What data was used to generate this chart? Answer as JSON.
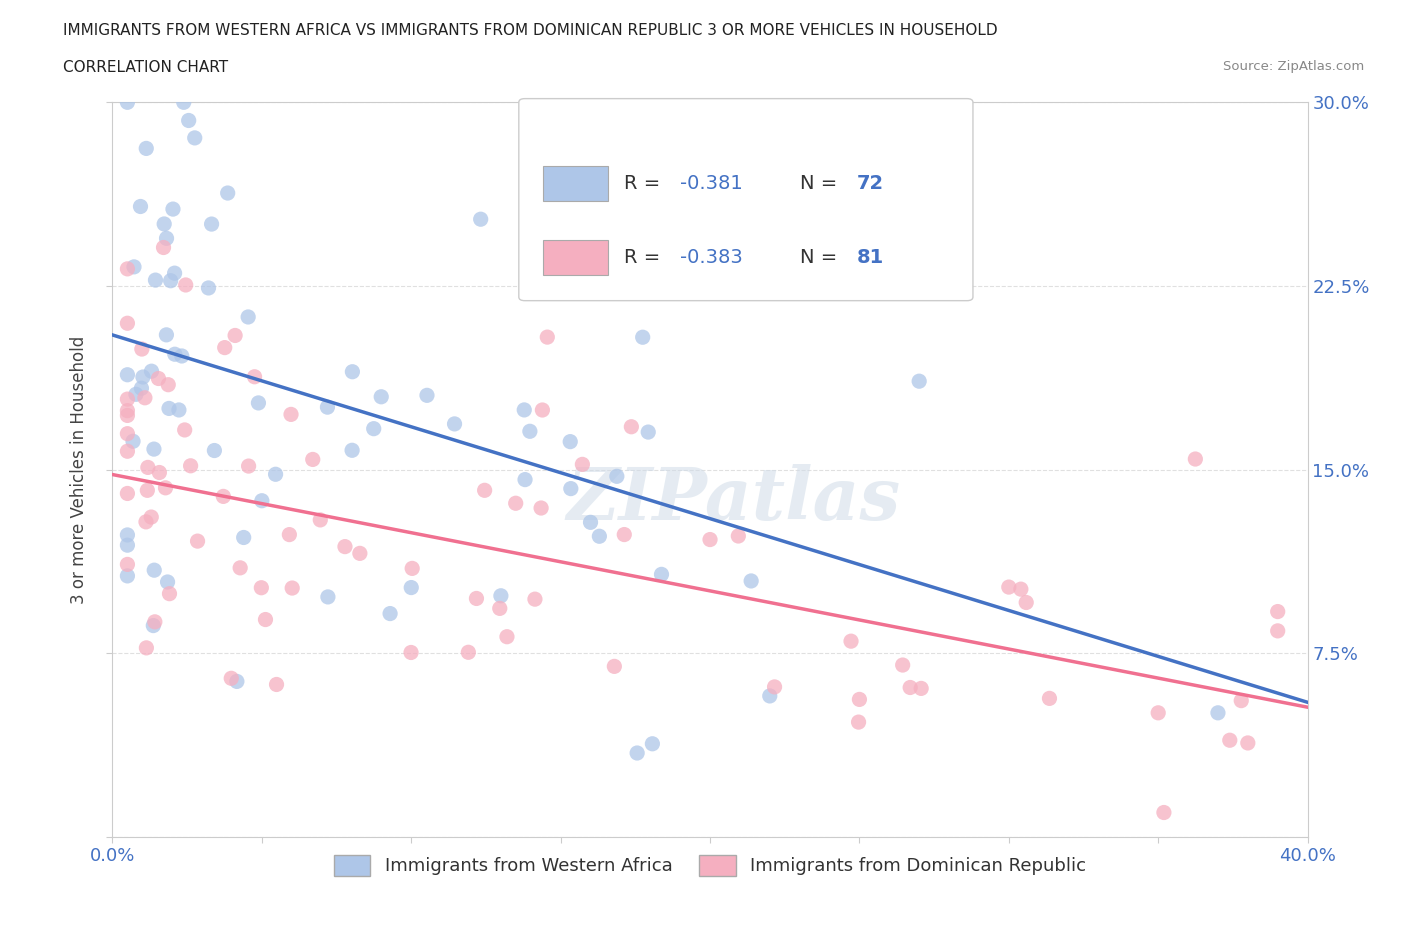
{
  "title_line1": "IMMIGRANTS FROM WESTERN AFRICA VS IMMIGRANTS FROM DOMINICAN REPUBLIC 3 OR MORE VEHICLES IN HOUSEHOLD",
  "title_line2": "CORRELATION CHART",
  "source_text": "Source: ZipAtlas.com",
  "ylabel": "3 or more Vehicles in Household",
  "xlim": [
    0.0,
    0.4
  ],
  "ylim": [
    0.0,
    0.3
  ],
  "xtick_pos": [
    0.0,
    0.05,
    0.1,
    0.15,
    0.2,
    0.25,
    0.3,
    0.35,
    0.4
  ],
  "ytick_pos": [
    0.0,
    0.075,
    0.15,
    0.225,
    0.3
  ],
  "xtick_labels": [
    "0.0%",
    "",
    "",
    "",
    "",
    "",
    "",
    "",
    "40.0%"
  ],
  "ytick_labels": [
    "",
    "7.5%",
    "15.0%",
    "22.5%",
    "30.0%"
  ],
  "blue_color": "#aec6e8",
  "pink_color": "#f5afc0",
  "blue_line_color": "#4472c4",
  "pink_line_color": "#f07090",
  "legend_label_blue": "Immigrants from Western Africa",
  "legend_label_pink": "Immigrants from Dominican Republic",
  "R_blue": -0.381,
  "N_blue": 72,
  "R_pink": -0.383,
  "N_pink": 81,
  "watermark_text": "ZIPatlas",
  "background_color": "#ffffff",
  "grid_color": "#e0e0e0",
  "tick_label_color": "#4472c4",
  "title_color": "#222222",
  "source_color": "#888888",
  "ylabel_color": "#444444",
  "blue_line_y0": 0.205,
  "blue_line_y1": 0.055,
  "pink_line_y0": 0.148,
  "pink_line_y1": 0.053
}
